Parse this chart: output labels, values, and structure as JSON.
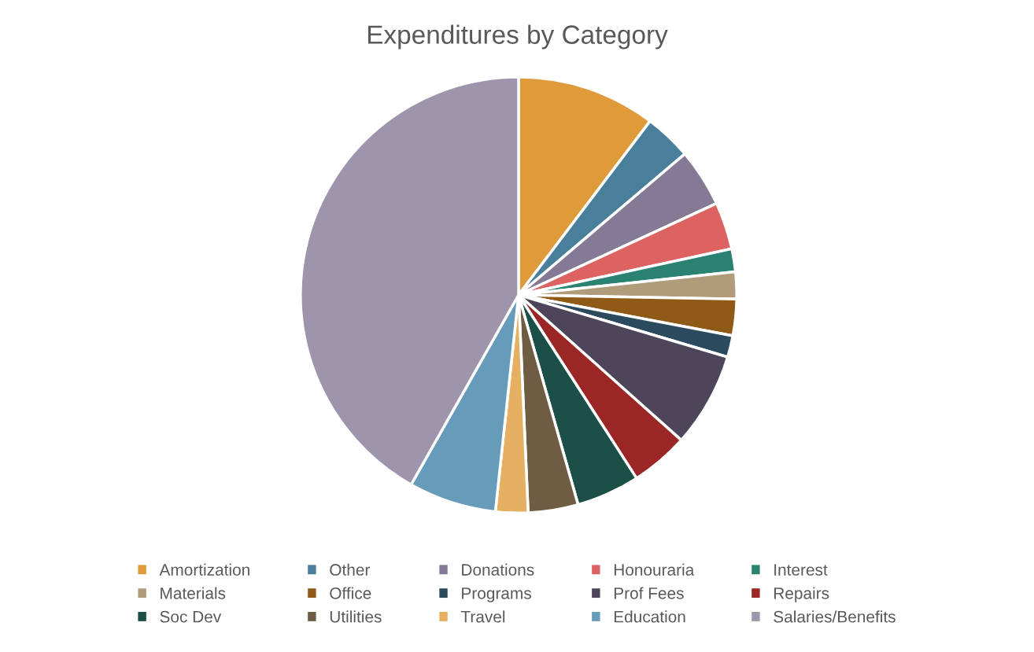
{
  "chart_data": {
    "type": "pie",
    "title": "Expenditures by Category",
    "categories": [
      "Amortization",
      "Other",
      "Donations",
      "Honouraria",
      "Interest",
      "Materials",
      "Office",
      "Programs",
      "Prof Fees",
      "Repairs",
      "Soc Dev",
      "Utilities",
      "Travel",
      "Education",
      "Salaries/Benefits"
    ],
    "values": [
      10.3,
      3.5,
      4.3,
      3.5,
      1.7,
      2.0,
      2.7,
      1.6,
      7.0,
      4.3,
      4.7,
      3.7,
      2.4,
      6.5,
      41.8
    ],
    "colors": [
      "#df9b3a",
      "#4a7f9c",
      "#857a95",
      "#dd6363",
      "#2a8272",
      "#b09b7b",
      "#8f5a15",
      "#2b4a5e",
      "#4d455a",
      "#9a2625",
      "#1b4f48",
      "#6e5d43",
      "#e6b063",
      "#669bb9",
      "#9e95ac"
    ],
    "legend": "bottom"
  }
}
